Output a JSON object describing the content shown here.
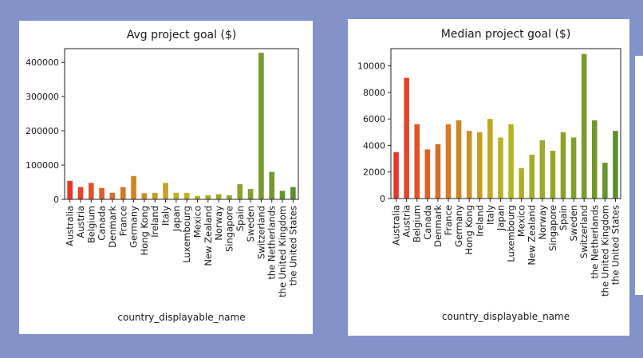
{
  "chart_data": [
    {
      "type": "bar",
      "title": "Avg project goal ($)",
      "xlabel": "country_displayable_name",
      "ylabel": "",
      "ylim": [
        0,
        440000
      ],
      "yticks": [
        0,
        100000,
        200000,
        300000,
        400000
      ],
      "categories": [
        "Australia",
        "Austria",
        "Belgium",
        "Canada",
        "Denmark",
        "France",
        "Germany",
        "Hong Kong",
        "Ireland",
        "Italy",
        "Japan",
        "Luxembourg",
        "Mexico",
        "New Zealand",
        "Norway",
        "Singapore",
        "Spain",
        "Sweden",
        "Switzerland",
        "the Netherlands",
        "the United Kingdom",
        "the United States"
      ],
      "values": [
        54000,
        36000,
        48000,
        33000,
        19000,
        36000,
        68000,
        18000,
        19000,
        48000,
        19000,
        19000,
        10000,
        12000,
        15000,
        12000,
        44000,
        30000,
        428000,
        80000,
        25000,
        36000
      ],
      "colors": [
        "#e8352a",
        "#e64428",
        "#e25227",
        "#de5f26",
        "#d96c25",
        "#d57924",
        "#d08523",
        "#cc9122",
        "#c79c21",
        "#c2a621",
        "#bdb120",
        "#b5b421",
        "#aeb024",
        "#a6ad26",
        "#9eaa28",
        "#95a62a",
        "#8ca22b",
        "#83a02c",
        "#7a9c2c",
        "#71982d",
        "#65952c",
        "#5a912c"
      ],
      "grid": false,
      "legend": "none"
    },
    {
      "type": "bar",
      "title": "Median project goal ($)",
      "xlabel": "country_displayable_name",
      "ylabel": "",
      "ylim": [
        0,
        11300
      ],
      "yticks": [
        0,
        2000,
        4000,
        6000,
        8000,
        10000
      ],
      "categories": [
        "Australia",
        "Austria",
        "Belgium",
        "Canada",
        "Denmark",
        "France",
        "Germany",
        "Hong Kong",
        "Ireland",
        "Italy",
        "Japan",
        "Luxembourg",
        "Mexico",
        "New Zealand",
        "Norway",
        "Singapore",
        "Spain",
        "Sweden",
        "Switzerland",
        "the Netherlands",
        "the United Kingdom",
        "the United States"
      ],
      "values": [
        3500,
        9100,
        5600,
        3700,
        4100,
        5600,
        5900,
        5100,
        5000,
        6000,
        4600,
        5600,
        2300,
        3300,
        4400,
        3600,
        5000,
        4600,
        10900,
        5900,
        2700,
        5100
      ],
      "colors": [
        "#e8352a",
        "#e64428",
        "#e25227",
        "#de5f26",
        "#d96c25",
        "#d57924",
        "#d08523",
        "#cc9122",
        "#c79c21",
        "#c2a621",
        "#bdb120",
        "#b5b421",
        "#aeb024",
        "#a6ad26",
        "#9eaa28",
        "#95a62a",
        "#8ca22b",
        "#83a02c",
        "#7a9c2c",
        "#71982d",
        "#65952c",
        "#5a912c"
      ],
      "grid": false,
      "legend": "none"
    }
  ]
}
